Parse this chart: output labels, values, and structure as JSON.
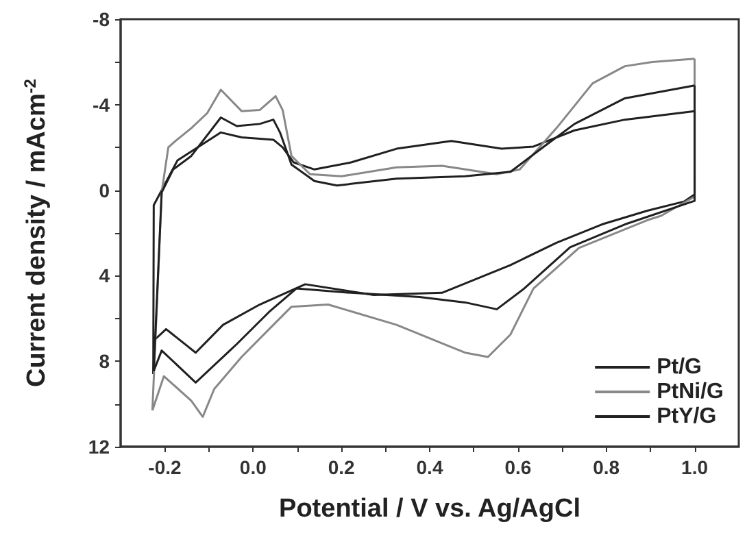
{
  "chart_data": {
    "type": "line",
    "xlabel": "Potential / V vs. Ag/AgCl",
    "ylabel": "Current density / mAcm$^{-2}$",
    "xlim": [
      -0.3,
      1.1
    ],
    "ylim": [
      12,
      -8
    ],
    "xticks": [
      {
        "value": -0.2,
        "label": "-0.2"
      },
      {
        "value": -0.1,
        "label": null
      },
      {
        "value": 0,
        "label": "0.0"
      },
      {
        "value": 0.1,
        "label": null
      },
      {
        "value": 0.2,
        "label": "0.2"
      },
      {
        "value": 0.3,
        "label": null
      },
      {
        "value": 0.4,
        "label": "0.4"
      },
      {
        "value": 0.5,
        "label": null
      },
      {
        "value": 0.6,
        "label": "0.6"
      },
      {
        "value": 0.7,
        "label": null
      },
      {
        "value": 0.8,
        "label": "0.8"
      },
      {
        "value": 0.9,
        "label": null
      },
      {
        "value": 1.0,
        "label": "1.0"
      }
    ],
    "yticks": [
      -8,
      {
        "value": -6,
        "label": null
      },
      -4,
      {
        "value": -2,
        "label": null
      },
      0,
      {
        "value": 2,
        "label": null
      },
      4,
      {
        "value": 6,
        "label": null
      },
      8,
      {
        "value": 10,
        "label": null
      },
      12
    ],
    "legend": "bottom right",
    "marker": "none",
    "line_style": "solid",
    "grid": false,
    "series": [
      {
        "name": "Pt/G",
        "color": "#202020",
        "x": [
          -0.226,
          -0.225,
          -0.171,
          -0.088,
          -0.073,
          -0.026,
          0.046,
          0.067,
          0.092,
          0.139,
          0.222,
          0.325,
          0.449,
          0.563,
          0.635,
          0.728,
          0.842,
          1.0
        ],
        "values": [
          8.6,
          0.7,
          -1.4,
          -2.5,
          -2.7,
          -2.47,
          -2.36,
          -2.0,
          -1.3,
          -0.97,
          -1.3,
          -1.94,
          -2.3,
          -1.94,
          -2.04,
          -2.8,
          -3.3,
          -3.7
        ]
      },
      {
        "color": "#202020",
        "x": [
          1.0,
          1.0,
          0.976,
          0.893,
          0.79,
          0.687,
          0.583,
          0.428,
          0.273,
          0.118,
          0.015,
          -0.068,
          -0.13,
          -0.197,
          -0.223,
          -0.226
        ],
        "values": [
          -3.7,
          0.2,
          0.53,
          0.96,
          1.6,
          2.46,
          3.5,
          4.8,
          4.9,
          4.4,
          5.35,
          6.3,
          7.6,
          6.5,
          7.0,
          8.6
        ]
      },
      {
        "name": "PtNi/G",
        "color": "#888888",
        "x": [
          -0.228,
          -0.207,
          -0.192,
          -0.176,
          -0.14,
          -0.104,
          -0.073,
          -0.026,
          0.015,
          0.051,
          0.067,
          0.087,
          0.129,
          0.2,
          0.325,
          0.428,
          0.552,
          0.604,
          0.687,
          0.769,
          0.842,
          0.904,
          1.0
        ],
        "values": [
          10.3,
          0.1,
          -2.0,
          -2.3,
          -2.9,
          -3.6,
          -4.7,
          -3.7,
          -3.75,
          -4.4,
          -3.75,
          -1.6,
          -0.75,
          -0.65,
          -1.07,
          -1.14,
          -0.75,
          -0.97,
          -2.9,
          -5.0,
          -5.8,
          -6.0,
          -6.15
        ]
      },
      {
        "color": "#888888",
        "x": [
          1.0,
          1.0,
          0.924,
          0.893,
          0.738,
          0.635,
          0.583,
          0.532,
          0.48,
          0.325,
          0.17,
          0.087,
          0.046,
          -0.026,
          -0.088,
          -0.114,
          -0.14,
          -0.202,
          -0.228
        ],
        "values": [
          -6.15,
          0.3,
          1.2,
          1.4,
          2.7,
          4.6,
          6.75,
          7.8,
          7.6,
          6.3,
          5.35,
          5.45,
          6.3,
          7.8,
          9.3,
          10.6,
          9.85,
          8.7,
          10.3
        ]
      },
      {
        "name": "PtY/G",
        "color": "#202020",
        "x": [
          -0.225,
          -0.207,
          -0.181,
          -0.14,
          -0.073,
          -0.037,
          0.015,
          0.046,
          0.061,
          0.087,
          0.139,
          0.19,
          0.325,
          0.48,
          0.583,
          0.656,
          0.728,
          0.842,
          1.0
        ],
        "values": [
          8.46,
          0.1,
          -0.97,
          -1.6,
          -3.4,
          -3.0,
          -3.1,
          -3.3,
          -2.7,
          -1.2,
          -0.43,
          -0.22,
          -0.54,
          -0.65,
          -0.86,
          -2.0,
          -3.1,
          -4.3,
          -4.9
        ]
      },
      {
        "color": "#202020",
        "x": [
          1.0,
          1.0,
          0.842,
          0.718,
          0.614,
          0.552,
          0.48,
          0.377,
          0.222,
          0.098,
          0.036,
          -0.037,
          -0.13,
          -0.207,
          -0.225
        ],
        "values": [
          -4.9,
          0.5,
          1.6,
          2.67,
          4.6,
          5.57,
          5.25,
          5.0,
          4.8,
          4.6,
          5.7,
          7.2,
          9.0,
          7.5,
          8.46
        ]
      }
    ]
  }
}
